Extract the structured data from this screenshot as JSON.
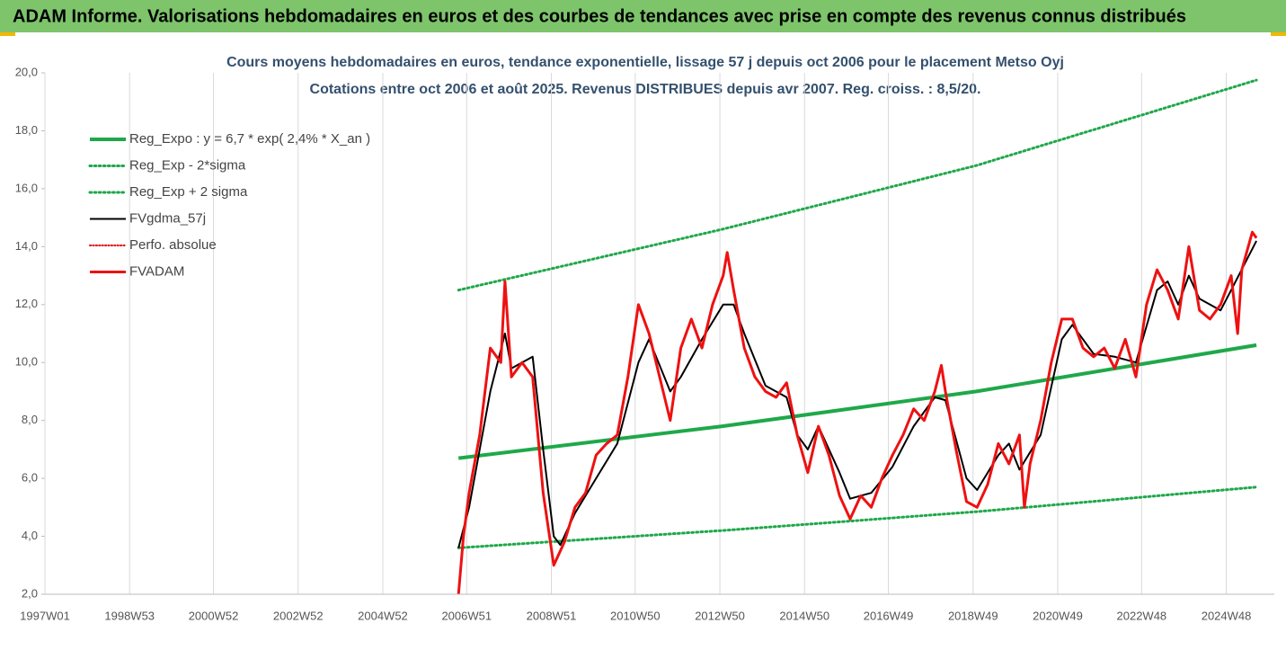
{
  "header": {
    "title": "ADAM Informe. Valorisations hebdomadaires en euros et des courbes de tendances avec prise en compte des revenus connus distribués"
  },
  "chart_data": {
    "type": "line",
    "title": "Cours moyens hebdomadaires en euros, tendance exponentielle, lissage 57 j depuis oct 2006 pour le placement Metso Oyj",
    "subtitle": "Cotations entre oct 2006 et août 2025. Revenus DISTRIBUES depuis avr 2007. Reg. croiss. : 8,5/20.",
    "xlim": [
      "1997W01",
      "2026W03"
    ],
    "xticks": [
      "1997W01",
      "1998W53",
      "2000W52",
      "2002W52",
      "2004W52",
      "2006W51",
      "2008W51",
      "2010W50",
      "2012W50",
      "2014W50",
      "2016W49",
      "2018W49",
      "2020W49",
      "2022W48",
      "2024W48"
    ],
    "ylim": [
      2,
      20
    ],
    "yticks": [
      {
        "value": 2,
        "label": "2,0"
      },
      {
        "value": 4,
        "label": "4,0"
      },
      {
        "value": 6,
        "label": "6,0"
      },
      {
        "value": 8,
        "label": "8,0"
      },
      {
        "value": 10,
        "label": "10,0"
      },
      {
        "value": 12,
        "label": "12,0"
      },
      {
        "value": 14,
        "label": "14,0"
      },
      {
        "value": 16,
        "label": "16,0"
      },
      {
        "value": 18,
        "label": "18,0"
      },
      {
        "value": 20,
        "label": "20,0"
      }
    ],
    "grid": "x",
    "legend": "upper-left",
    "series": [
      {
        "name": "Reg_Expo : y = 6,7 * exp( 2,4% *  X_an )",
        "color": "#1fa84a",
        "style": "solid",
        "width": 4,
        "x": [
          "2006W41",
          "2013W01",
          "2019W01",
          "2025W33"
        ],
        "values": [
          6.7,
          7.8,
          9.0,
          10.6
        ]
      },
      {
        "name": "Reg_Exp - 2*sigma",
        "color": "#1fa84a",
        "style": "dotted",
        "width": 3,
        "x": [
          "2006W41",
          "2013W01",
          "2019W01",
          "2025W33"
        ],
        "values": [
          3.6,
          4.2,
          4.85,
          5.7
        ]
      },
      {
        "name": "Reg_Exp + 2 sigma",
        "color": "#1fa84a",
        "style": "dotted",
        "width": 3,
        "x": [
          "2006W41",
          "2013W01",
          "2019W01",
          "2025W33"
        ],
        "values": [
          12.5,
          14.6,
          16.8,
          19.75
        ]
      },
      {
        "name": "FVgdma_57j",
        "color": "#000000",
        "style": "solid",
        "width": 2,
        "x": [
          "2006W41",
          "2007W02",
          "2007W28",
          "2007W46",
          "2008W02",
          "2008W28",
          "2008W41",
          "2009W02",
          "2009W10",
          "2009W28",
          "2010W02",
          "2010W28",
          "2011W02",
          "2011W15",
          "2011W41",
          "2012W02",
          "2012W28",
          "2013W02",
          "2013W15",
          "2013W28",
          "2014W02",
          "2014W28",
          "2014W41",
          "2015W02",
          "2015W15",
          "2015W41",
          "2016W02",
          "2016W28",
          "2017W02",
          "2017W28",
          "2018W02",
          "2018W15",
          "2018W41",
          "2019W02",
          "2019W28",
          "2019W41",
          "2020W02",
          "2020W28",
          "2021W02",
          "2021W15",
          "2021W41",
          "2022W15",
          "2022W41",
          "2023W15",
          "2023W28",
          "2023W41",
          "2024W02",
          "2024W15",
          "2024W41",
          "2025W02",
          "2025W33"
        ],
        "values": [
          3.6,
          5.0,
          9.0,
          11.0,
          9.8,
          10.2,
          7.0,
          4.0,
          3.7,
          4.8,
          6.0,
          7.2,
          10.0,
          10.8,
          9.0,
          9.5,
          10.8,
          12.0,
          12.0,
          11.0,
          9.2,
          8.8,
          7.5,
          7.0,
          7.8,
          6.2,
          5.3,
          5.5,
          6.4,
          7.8,
          8.8,
          8.7,
          6.0,
          5.6,
          6.8,
          7.2,
          6.3,
          7.5,
          10.8,
          11.3,
          10.3,
          10.2,
          10.0,
          12.5,
          12.8,
          12.0,
          13.0,
          12.2,
          11.8,
          12.5,
          14.2
        ]
      },
      {
        "name": "Perfo. absolue",
        "color": "#e00000",
        "style": "dotted",
        "width": 2,
        "x": [],
        "values": []
      },
      {
        "name": "FVADAM",
        "color": "#ee1111",
        "style": "solid",
        "width": 3,
        "x": [
          "2006W41",
          "2006W47",
          "2007W02",
          "2007W15",
          "2007W28",
          "2007W41",
          "2007W46",
          "2008W02",
          "2008W15",
          "2008W28",
          "2008W41",
          "2009W02",
          "2009W15",
          "2009W28",
          "2009W41",
          "2010W02",
          "2010W15",
          "2010W28",
          "2010W41",
          "2011W02",
          "2011W15",
          "2011W28",
          "2011W41",
          "2012W02",
          "2012W15",
          "2012W28",
          "2012W41",
          "2013W02",
          "2013W07",
          "2013W15",
          "2013W28",
          "2013W41",
          "2014W02",
          "2014W15",
          "2014W28",
          "2014W41",
          "2015W02",
          "2015W15",
          "2015W28",
          "2015W41",
          "2016W02",
          "2016W15",
          "2016W28",
          "2016W41",
          "2017W02",
          "2017W15",
          "2017W28",
          "2017W41",
          "2018W02",
          "2018W10",
          "2018W15",
          "2018W28",
          "2018W41",
          "2019W02",
          "2019W15",
          "2019W28",
          "2019W41",
          "2020W02",
          "2020W08",
          "2020W15",
          "2020W28",
          "2020W41",
          "2021W02",
          "2021W15",
          "2021W28",
          "2021W41",
          "2022W02",
          "2022W15",
          "2022W28",
          "2022W41",
          "2023W02",
          "2023W15",
          "2023W28",
          "2023W41",
          "2024W02",
          "2024W15",
          "2024W28",
          "2024W41",
          "2025W02",
          "2025W10",
          "2025W15",
          "2025W28",
          "2025W33"
        ],
        "values": [
          2.0,
          4.0,
          5.5,
          7.5,
          10.5,
          10.0,
          12.8,
          9.5,
          10.0,
          9.5,
          5.5,
          3.0,
          3.8,
          5.0,
          5.5,
          6.8,
          7.2,
          7.5,
          9.5,
          12.0,
          11.0,
          9.5,
          8.0,
          10.5,
          11.5,
          10.5,
          12.0,
          13.0,
          13.8,
          12.5,
          10.5,
          9.5,
          9.0,
          8.8,
          9.3,
          7.5,
          6.2,
          7.8,
          6.8,
          5.4,
          4.6,
          5.4,
          5.0,
          6.0,
          6.8,
          7.5,
          8.4,
          8.0,
          9.0,
          9.9,
          9.0,
          7.0,
          5.2,
          5.0,
          5.8,
          7.2,
          6.5,
          7.5,
          5.0,
          6.5,
          8.0,
          10.0,
          11.5,
          11.5,
          10.5,
          10.2,
          10.5,
          9.8,
          10.8,
          9.5,
          12.0,
          13.2,
          12.5,
          11.5,
          14.0,
          11.8,
          11.5,
          12.0,
          13.0,
          11.0,
          13.2,
          14.5,
          14.3
        ]
      }
    ]
  }
}
